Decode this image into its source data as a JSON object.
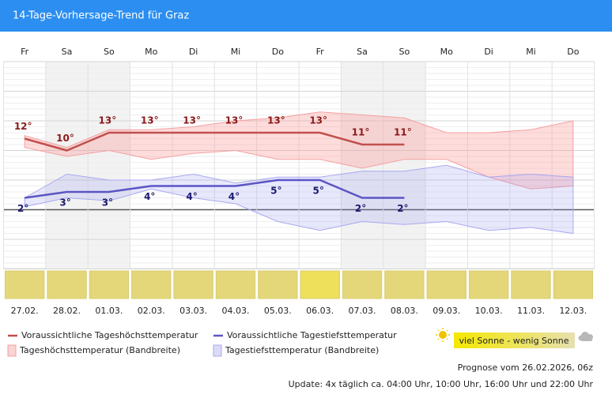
{
  "chart_data": {
    "type": "line",
    "title": "14-Tage-Vorhersage-Trend für Graz",
    "categories": [
      "Fr",
      "Sa",
      "So",
      "Mo",
      "Di",
      "Mi",
      "Do",
      "Fr",
      "Sa",
      "So",
      "Mo",
      "Di",
      "Mi",
      "Do"
    ],
    "dates": [
      "27.02.",
      "28.02.",
      "01.03.",
      "02.03.",
      "03.03.",
      "04.03.",
      "05.03.",
      "06.03.",
      "07.03.",
      "08.03.",
      "09.03.",
      "10.03.",
      "11.03.",
      "12.03."
    ],
    "weekend": [
      false,
      true,
      true,
      false,
      false,
      false,
      false,
      false,
      true,
      true,
      false,
      false,
      false,
      false
    ],
    "ylim": [
      -10,
      25
    ],
    "yticks": [
      -10,
      -5,
      0,
      5,
      10,
      15,
      20,
      25
    ],
    "grid": true,
    "series": [
      {
        "name": "Voraussichtliche Tageshöchsttemperatur",
        "color": "#c0504d",
        "label_color": "#8b1a1a",
        "values": [
          12,
          10,
          13,
          13,
          13,
          13,
          13,
          13,
          11,
          11,
          null,
          null,
          null,
          null
        ],
        "value_labels": [
          "12°",
          "10°",
          "13°",
          "13°",
          "13°",
          "13°",
          "13°",
          "13°",
          "11°",
          "11°",
          null,
          null,
          null,
          null
        ]
      },
      {
        "name": "Voraussichtliche Tagestiefsttemperatur",
        "color": "#5b55c4",
        "label_color": "#1a1a6e",
        "values": [
          2,
          3,
          3,
          4,
          4,
          4,
          5,
          5,
          2,
          2,
          null,
          null,
          null,
          null
        ],
        "value_labels": [
          "2°",
          "3°",
          "3°",
          "4°",
          "4°",
          "4°",
          "5°",
          "5°",
          "2°",
          "2°",
          null,
          null,
          null,
          null
        ]
      }
    ],
    "bands": [
      {
        "name": "Tageshöchsttemperatur (Bandbreite)",
        "color": "#f08080",
        "upper": [
          12.5,
          10.5,
          13.5,
          13.5,
          14,
          15,
          15.5,
          16.5,
          16,
          15.5,
          13,
          13,
          13.5,
          15
        ],
        "lower": [
          10.5,
          9,
          10,
          8.5,
          9.5,
          10,
          8.5,
          8.5,
          7,
          8.5,
          8.5,
          5.5,
          3.5,
          4
        ]
      },
      {
        "name": "Tagestiefsttemperatur (Bandbreite)",
        "color": "#8888e8",
        "upper": [
          2,
          6,
          5,
          5,
          6,
          4.5,
          5.5,
          5.5,
          6.5,
          6.5,
          7.5,
          5.5,
          6,
          5.5
        ],
        "lower": [
          0.5,
          2,
          1.5,
          3.5,
          2,
          1,
          -2,
          -3.5,
          -2,
          -2.5,
          -2,
          -3.5,
          -3,
          -4
        ]
      }
    ],
    "sun_colors": [
      "#e4d77a",
      "#e4d77a",
      "#e4d77a",
      "#e4d77a",
      "#e4d77a",
      "#e4d77a",
      "#e4d77a",
      "#eee05a",
      "#e4d77a",
      "#e4d77a",
      "#e4d77a",
      "#e4d77a",
      "#e4d77a",
      "#e4d77a"
    ],
    "sun_legend": "viel Sonne - wenig Sonne",
    "forecast": "Prognose vom 26.02.2026, 06z",
    "update": "Update: 4x täglich ca. 04:00 Uhr, 10:00 Uhr, 16:00 Uhr und 22:00 Uhr"
  }
}
